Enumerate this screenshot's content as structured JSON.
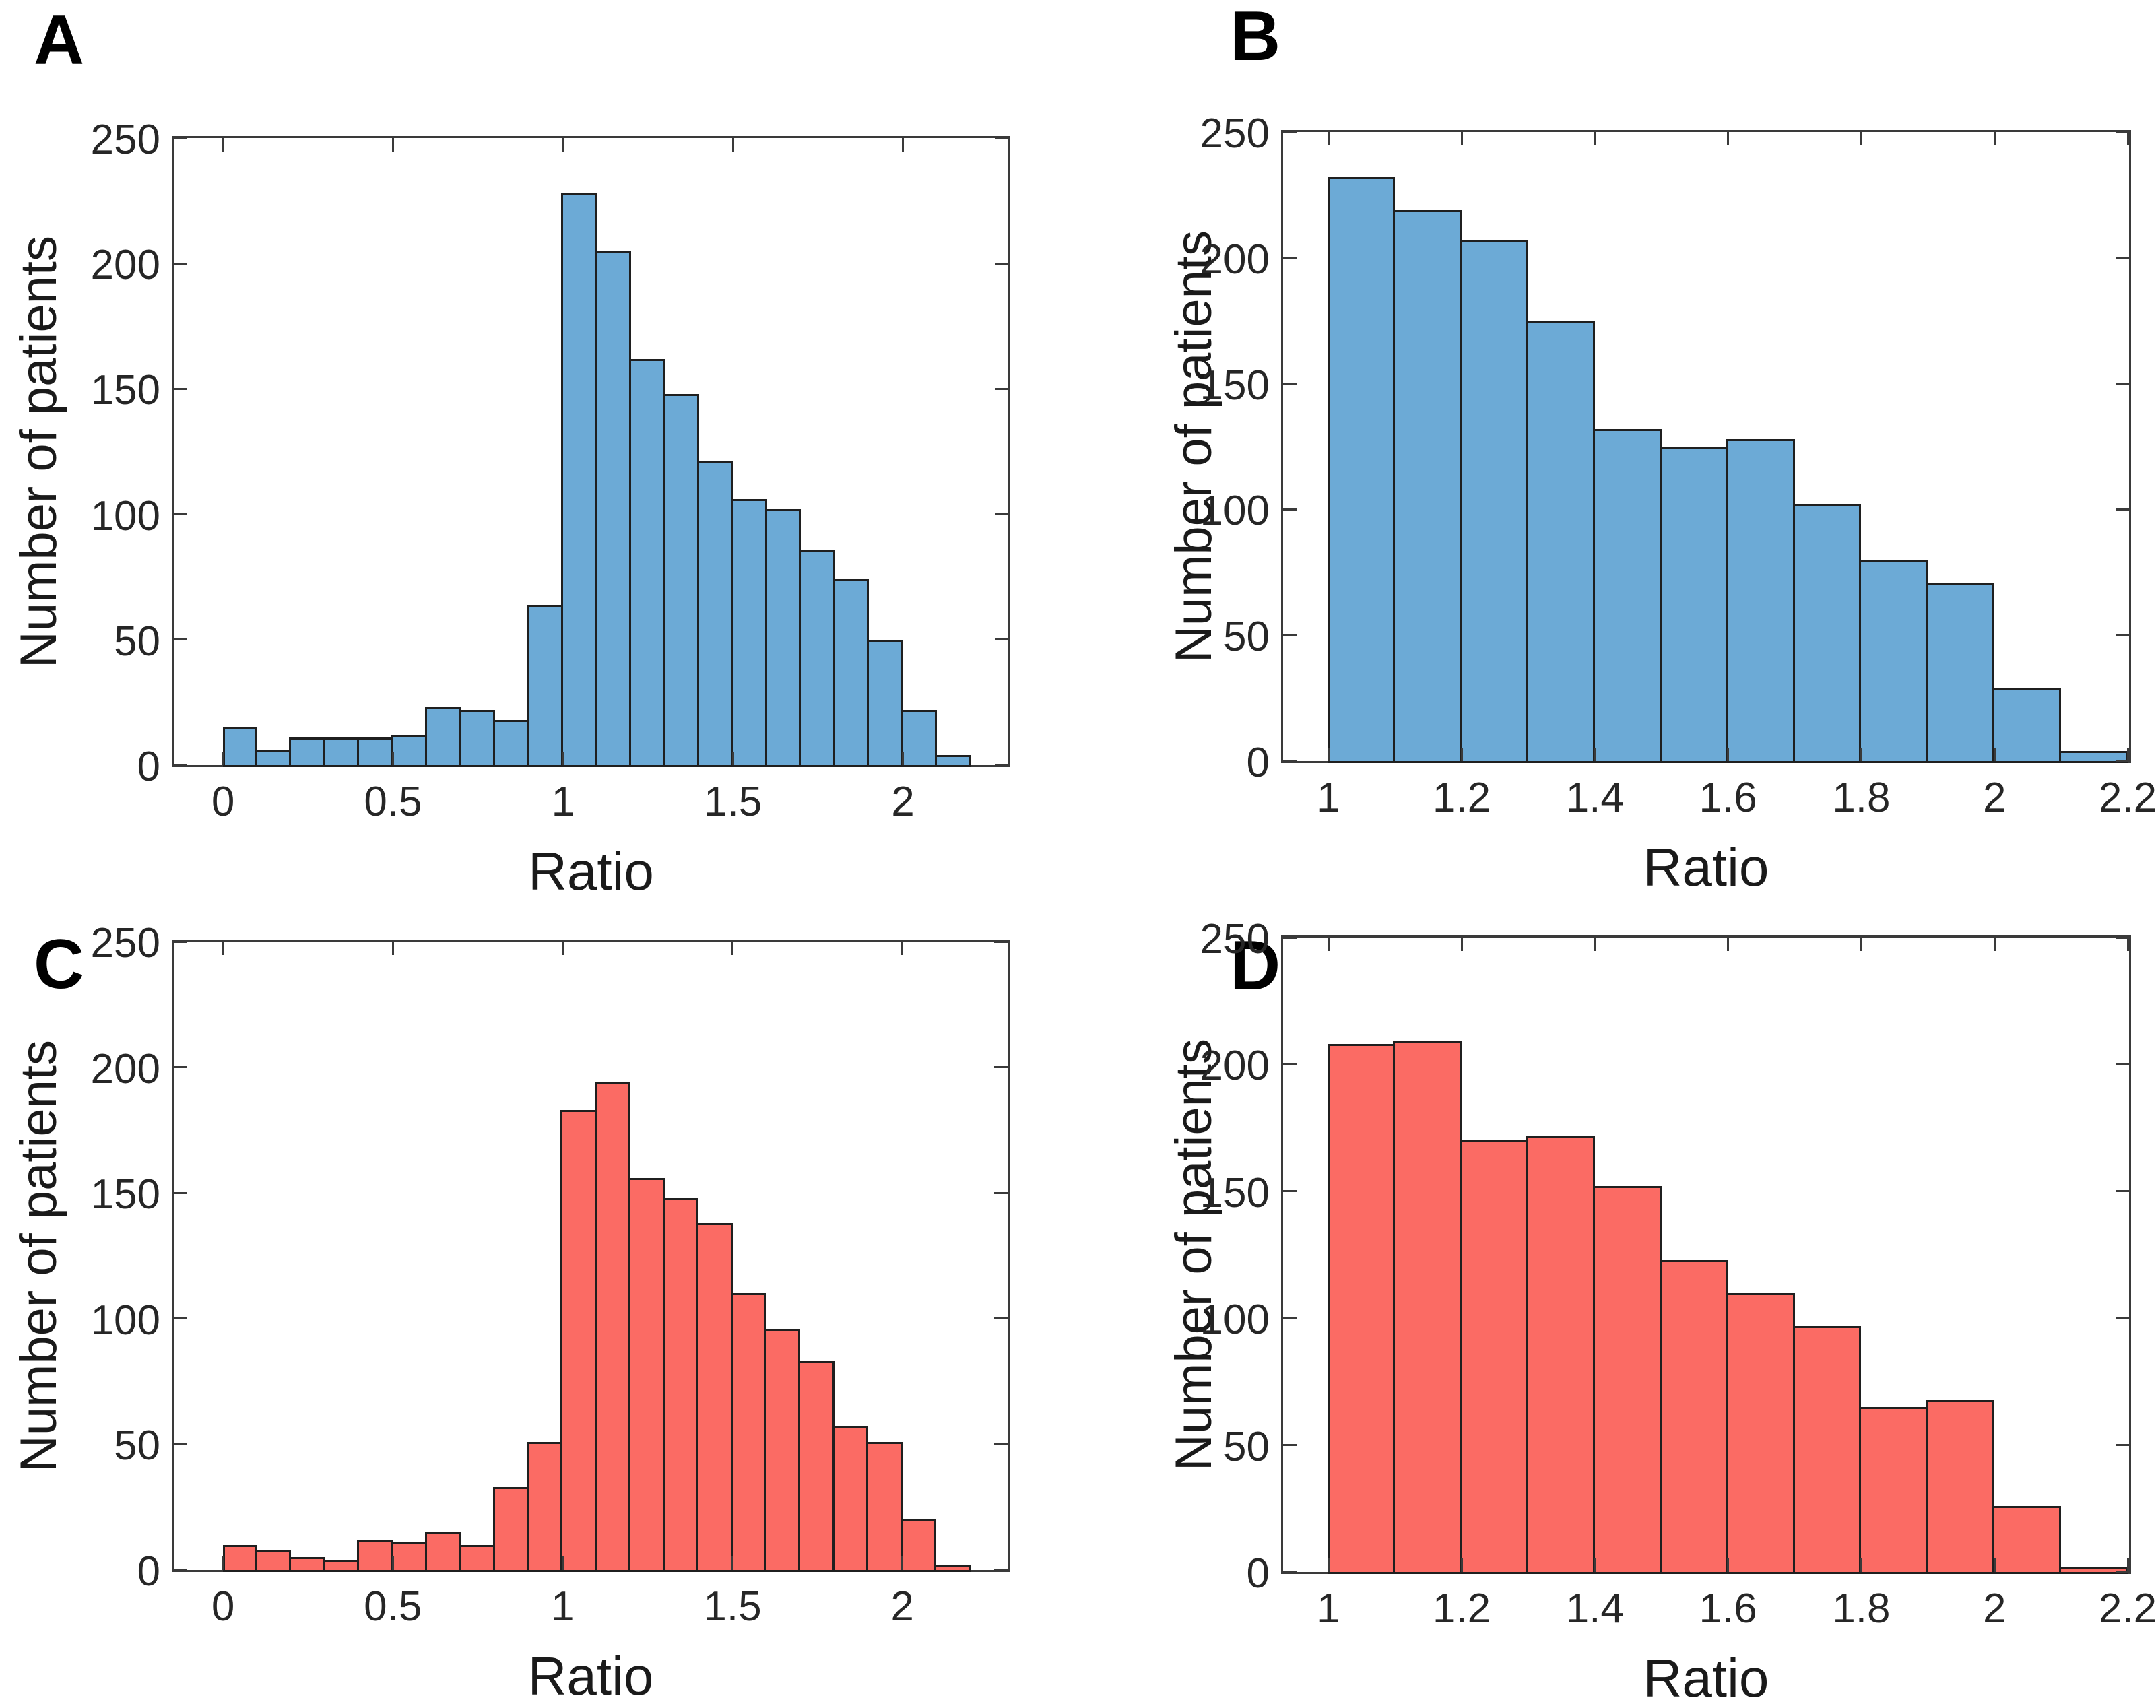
{
  "figure": {
    "background": "#ffffff",
    "description": "Four-panel histogram figure of patient ratios"
  },
  "chart_data": [
    {
      "panel": "A",
      "type": "bar",
      "subtype": "histogram",
      "xlabel": "Ratio",
      "ylabel": "Number of patients",
      "bar_color": "#6CAAD6",
      "edge_color": "#1f1f1f",
      "bin_start": 0.0,
      "bin_width": 0.1,
      "values": [
        15,
        6,
        11,
        11,
        11,
        12,
        23,
        22,
        18,
        64,
        228,
        205,
        162,
        148,
        121,
        106,
        102,
        86,
        74,
        50,
        22,
        4
      ],
      "xticks": [
        0,
        0.5,
        1,
        1.5,
        2
      ],
      "xtick_labels": [
        "0",
        "0.5",
        "1",
        "1.5",
        "2"
      ],
      "yticks": [
        0,
        50,
        100,
        150,
        200,
        250
      ],
      "ytick_labels": [
        "0",
        "50",
        "100",
        "150",
        "200",
        "250"
      ],
      "xlim": [
        -0.145,
        2.31
      ],
      "ylim": [
        0,
        250
      ],
      "grid": false,
      "legend": null
    },
    {
      "panel": "B",
      "type": "bar",
      "subtype": "histogram",
      "xlabel": "Ratio",
      "ylabel": "Number of patients",
      "bar_color": "#6CAAD6",
      "edge_color": "#1f1f1f",
      "bin_start": 1.0,
      "bin_width": 0.1,
      "values": [
        232,
        219,
        207,
        175,
        132,
        125,
        128,
        102,
        80,
        71,
        29,
        4
      ],
      "xticks": [
        1,
        1.2,
        1.4,
        1.6,
        1.8,
        2,
        2.2
      ],
      "xtick_labels": [
        "1",
        "1.2",
        "1.4",
        "1.6",
        "1.8",
        "2",
        "2.2"
      ],
      "yticks": [
        0,
        50,
        100,
        150,
        200,
        250
      ],
      "ytick_labels": [
        "0",
        "50",
        "100",
        "150",
        "200",
        "250"
      ],
      "xlim": [
        0.932,
        2.202
      ],
      "ylim": [
        0,
        250
      ],
      "grid": false,
      "legend": null
    },
    {
      "panel": "C",
      "type": "bar",
      "subtype": "histogram",
      "xlabel": "Ratio",
      "ylabel": "Number of patients",
      "bar_color": "#FB6B64",
      "edge_color": "#1f1f1f",
      "bin_start": 0.0,
      "bin_width": 0.1,
      "values": [
        10,
        8,
        5,
        4,
        12,
        11,
        15,
        10,
        33,
        51,
        183,
        194,
        156,
        148,
        138,
        110,
        96,
        83,
        57,
        51,
        20,
        2
      ],
      "xticks": [
        0,
        0.5,
        1,
        1.5,
        2
      ],
      "xtick_labels": [
        "0",
        "0.5",
        "1",
        "1.5",
        "2"
      ],
      "yticks": [
        0,
        50,
        100,
        150,
        200,
        250
      ],
      "ytick_labels": [
        "0",
        "50",
        "100",
        "150",
        "200",
        "250"
      ],
      "xlim": [
        -0.145,
        2.31
      ],
      "ylim": [
        0,
        250
      ],
      "grid": false,
      "legend": null
    },
    {
      "panel": "D",
      "type": "bar",
      "subtype": "histogram",
      "xlabel": "Ratio",
      "ylabel": "Number of patients",
      "bar_color": "#FB6B64",
      "edge_color": "#1f1f1f",
      "bin_start": 1.0,
      "bin_width": 0.1,
      "values": [
        208,
        209,
        170,
        172,
        152,
        123,
        110,
        97,
        65,
        68,
        26,
        2
      ],
      "xticks": [
        1,
        1.2,
        1.4,
        1.6,
        1.8,
        2,
        2.2
      ],
      "xtick_labels": [
        "1",
        "1.2",
        "1.4",
        "1.6",
        "1.8",
        "2",
        "2.2"
      ],
      "yticks": [
        0,
        50,
        100,
        150,
        200,
        250
      ],
      "ytick_labels": [
        "0",
        "50",
        "100",
        "150",
        "200",
        "250"
      ],
      "xlim": [
        0.932,
        2.202
      ],
      "ylim": [
        0,
        250
      ],
      "grid": false,
      "legend": null
    }
  ]
}
